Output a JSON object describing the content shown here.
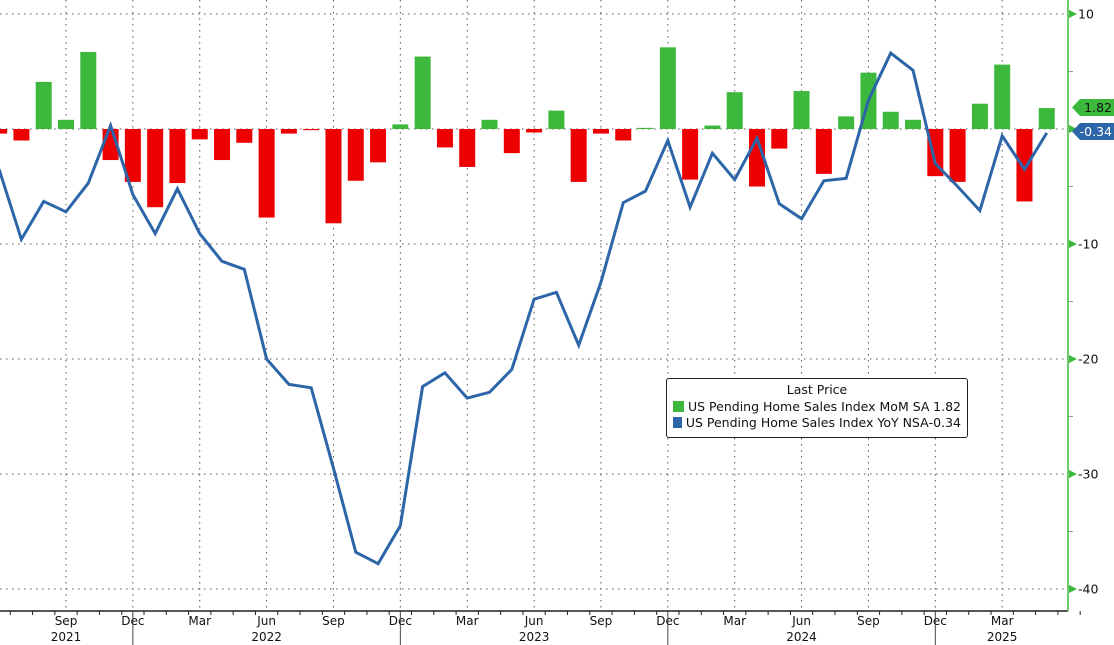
{
  "chart_data": {
    "type": "bar+line",
    "title": "",
    "xlabel": "",
    "ylabel": "",
    "ylim": [
      -42,
      11
    ],
    "yticks": [
      10,
      0,
      -10,
      -20,
      -30,
      -40
    ],
    "grid": true,
    "legend_placement": "center-right",
    "legend_title": "Last Price",
    "x_tick_labels": [
      {
        "month_index": 3,
        "label": "Sep",
        "year": "2021"
      },
      {
        "month_index": 6,
        "label": "Dec",
        "year": ""
      },
      {
        "month_index": 9,
        "label": "Mar",
        "year": ""
      },
      {
        "month_index": 12,
        "label": "Jun",
        "year": "2022"
      },
      {
        "month_index": 15,
        "label": "Sep",
        "year": ""
      },
      {
        "month_index": 18,
        "label": "Dec",
        "year": ""
      },
      {
        "month_index": 21,
        "label": "Mar",
        "year": ""
      },
      {
        "month_index": 24,
        "label": "Jun",
        "year": "2023"
      },
      {
        "month_index": 27,
        "label": "Sep",
        "year": ""
      },
      {
        "month_index": 30,
        "label": "Dec",
        "year": ""
      },
      {
        "month_index": 33,
        "label": "Mar",
        "year": ""
      },
      {
        "month_index": 36,
        "label": "Jun",
        "year": "2024"
      },
      {
        "month_index": 39,
        "label": "Sep",
        "year": ""
      },
      {
        "month_index": 42,
        "label": "Dec",
        "year": ""
      },
      {
        "month_index": 45,
        "label": "Mar",
        "year": "2025"
      }
    ],
    "x": [
      "2021-06",
      "2021-07",
      "2021-08",
      "2021-09",
      "2021-10",
      "2021-11",
      "2021-12",
      "2022-01",
      "2022-02",
      "2022-03",
      "2022-04",
      "2022-05",
      "2022-06",
      "2022-07",
      "2022-08",
      "2022-09",
      "2022-10",
      "2022-11",
      "2022-12",
      "2023-01",
      "2023-02",
      "2023-03",
      "2023-04",
      "2023-05",
      "2023-06",
      "2023-07",
      "2023-08",
      "2023-09",
      "2023-10",
      "2023-11",
      "2023-12",
      "2024-01",
      "2024-02",
      "2024-03",
      "2024-04",
      "2024-05",
      "2024-06",
      "2024-07",
      "2024-08",
      "2024-09",
      "2024-10",
      "2024-11",
      "2024-12",
      "2025-01",
      "2025-02",
      "2025-03",
      "2025-04",
      "2025-05"
    ],
    "series": [
      {
        "name": "US Pending Home Sales Index MoM SA",
        "type": "bar",
        "last": "1.82",
        "color_pos": "#3cb93c",
        "color_neg": "#ee0000",
        "values": [
          -0.4,
          -1.0,
          4.1,
          0.8,
          6.7,
          -2.7,
          -4.6,
          -6.8,
          -4.7,
          -0.9,
          -2.7,
          -1.2,
          -7.7,
          -0.4,
          -0.1,
          -8.2,
          -4.5,
          -2.9,
          0.4,
          6.3,
          -1.6,
          -3.3,
          0.8,
          -2.1,
          -0.3,
          1.6,
          -4.6,
          -0.4,
          -1.0,
          0.1,
          7.1,
          -4.4,
          0.3,
          3.2,
          -5.0,
          -1.7,
          3.3,
          -3.9,
          1.1,
          4.9,
          1.5,
          0.8,
          -4.1,
          -4.6,
          2.2,
          5.6,
          -6.3,
          1.82
        ]
      },
      {
        "name": "US Pending Home Sales Index YoY NSA",
        "type": "line",
        "last": "-0.34",
        "color": "#2d66a8",
        "values": [
          -3.5,
          -9.6,
          -6.3,
          -7.2,
          -4.7,
          0.3,
          -5.7,
          -9.1,
          -5.2,
          -9.1,
          -11.5,
          -12.2,
          -20.0,
          -22.2,
          -22.5,
          -29.5,
          -36.8,
          -37.8,
          -34.5,
          -22.4,
          -21.2,
          -23.4,
          -22.9,
          -20.9,
          -14.8,
          -14.2,
          -18.8,
          -13.3,
          -6.4,
          -5.4,
          -1.0,
          -6.8,
          -2.1,
          -4.4,
          -0.8,
          -6.5,
          -7.8,
          -4.5,
          -4.3,
          2.5,
          6.6,
          5.1,
          -3.0,
          -5.0,
          -7.1,
          -0.6,
          -3.5,
          -0.34
        ]
      }
    ]
  },
  "legend": {
    "title": "Last Price",
    "items": [
      {
        "label": "US Pending Home Sales Index MoM SA",
        "value": "1.82",
        "color": "#3cb93c"
      },
      {
        "label": "US Pending Home Sales Index YoY NSA",
        "value": "-0.34",
        "color": "#2d66a8"
      }
    ]
  },
  "tags": {
    "mom": "1.82",
    "yoy": "-0.34"
  }
}
